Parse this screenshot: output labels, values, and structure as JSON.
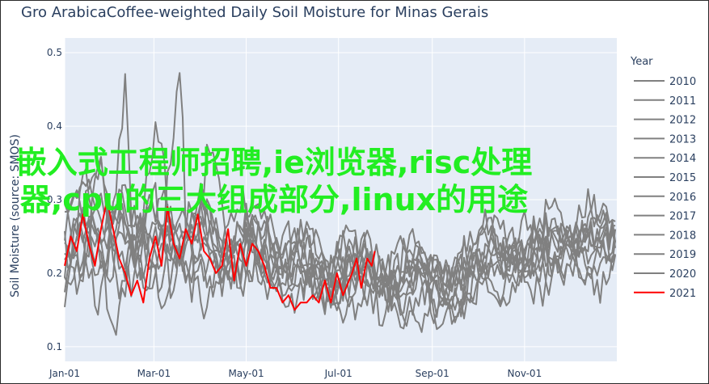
{
  "chart_data": {
    "type": "line",
    "title": "Gro ArabicaCoffee-weighted Daily Soil Moisture for Minas Gerais",
    "ylabel": "Soil Moisture (source: SMOS)",
    "xlabel": "",
    "x_ticks": [
      "Jan-01",
      "Mar-01",
      "May-01",
      "Jul-01",
      "Sep-01",
      "Nov-01"
    ],
    "y_ticks": [
      "0.1",
      "0.2",
      "0.3",
      "0.4",
      "0.5"
    ],
    "ylim": [
      0.08,
      0.52
    ],
    "xlim_days": [
      0,
      365
    ],
    "grid": true,
    "legend_title": "Year",
    "legend_position": "right",
    "colors": {
      "historical": "#808080",
      "current": "#ff0000",
      "plot_bg": "#e5ecf6",
      "grid": "#ffffff"
    },
    "series": [
      {
        "name": "2010",
        "anchors": [
          [
            0,
            0.22
          ],
          [
            15,
            0.3
          ],
          [
            25,
            0.35
          ],
          [
            35,
            0.2
          ],
          [
            50,
            0.27
          ],
          [
            65,
            0.16
          ],
          [
            80,
            0.24
          ],
          [
            100,
            0.18
          ],
          [
            120,
            0.28
          ],
          [
            135,
            0.17
          ],
          [
            150,
            0.22
          ],
          [
            170,
            0.16
          ],
          [
            190,
            0.22
          ],
          [
            210,
            0.14
          ],
          [
            230,
            0.21
          ],
          [
            250,
            0.13
          ],
          [
            270,
            0.23
          ],
          [
            290,
            0.17
          ],
          [
            310,
            0.26
          ],
          [
            330,
            0.22
          ],
          [
            345,
            0.3
          ],
          [
            365,
            0.24
          ]
        ]
      },
      {
        "name": "2011",
        "anchors": [
          [
            0,
            0.18
          ],
          [
            10,
            0.26
          ],
          [
            22,
            0.16
          ],
          [
            35,
            0.3
          ],
          [
            48,
            0.22
          ],
          [
            60,
            0.41
          ],
          [
            75,
            0.21
          ],
          [
            90,
            0.29
          ],
          [
            105,
            0.18
          ],
          [
            125,
            0.26
          ],
          [
            140,
            0.19
          ],
          [
            160,
            0.23
          ],
          [
            180,
            0.17
          ],
          [
            200,
            0.21
          ],
          [
            220,
            0.15
          ],
          [
            240,
            0.2
          ],
          [
            260,
            0.16
          ],
          [
            280,
            0.26
          ],
          [
            300,
            0.2
          ],
          [
            320,
            0.29
          ],
          [
            340,
            0.24
          ],
          [
            365,
            0.27
          ]
        ]
      },
      {
        "name": "2012",
        "anchors": [
          [
            0,
            0.26
          ],
          [
            12,
            0.2
          ],
          [
            24,
            0.38
          ],
          [
            30,
            0.24
          ],
          [
            44,
            0.19
          ],
          [
            58,
            0.33
          ],
          [
            70,
            0.18
          ],
          [
            85,
            0.3
          ],
          [
            100,
            0.21
          ],
          [
            118,
            0.31
          ],
          [
            130,
            0.17
          ],
          [
            148,
            0.25
          ],
          [
            165,
            0.18
          ],
          [
            185,
            0.24
          ],
          [
            205,
            0.16
          ],
          [
            225,
            0.23
          ],
          [
            245,
            0.15
          ],
          [
            265,
            0.24
          ],
          [
            285,
            0.19
          ],
          [
            305,
            0.27
          ],
          [
            325,
            0.21
          ],
          [
            350,
            0.28
          ],
          [
            365,
            0.25
          ]
        ]
      },
      {
        "name": "2013",
        "anchors": [
          [
            0,
            0.2
          ],
          [
            14,
            0.33
          ],
          [
            26,
            0.23
          ],
          [
            38,
            0.29
          ],
          [
            52,
            0.17
          ],
          [
            66,
            0.27
          ],
          [
            82,
            0.2
          ],
          [
            96,
            0.38
          ],
          [
            110,
            0.22
          ],
          [
            128,
            0.27
          ],
          [
            145,
            0.2
          ],
          [
            162,
            0.24
          ],
          [
            178,
            0.16
          ],
          [
            198,
            0.22
          ],
          [
            218,
            0.17
          ],
          [
            238,
            0.24
          ],
          [
            258,
            0.13
          ],
          [
            278,
            0.2
          ],
          [
            298,
            0.23
          ],
          [
            318,
            0.2
          ],
          [
            338,
            0.27
          ],
          [
            365,
            0.22
          ]
        ]
      },
      {
        "name": "2014",
        "anchors": [
          [
            0,
            0.24
          ],
          [
            8,
            0.17
          ],
          [
            20,
            0.28
          ],
          [
            32,
            0.12
          ],
          [
            46,
            0.23
          ],
          [
            62,
            0.19
          ],
          [
            78,
            0.28
          ],
          [
            92,
            0.16
          ],
          [
            108,
            0.25
          ],
          [
            122,
            0.2
          ],
          [
            138,
            0.27
          ],
          [
            155,
            0.17
          ],
          [
            172,
            0.22
          ],
          [
            192,
            0.15
          ],
          [
            212,
            0.2
          ],
          [
            232,
            0.12
          ],
          [
            252,
            0.18
          ],
          [
            272,
            0.22
          ],
          [
            292,
            0.16
          ],
          [
            312,
            0.24
          ],
          [
            332,
            0.19
          ],
          [
            352,
            0.26
          ],
          [
            365,
            0.2
          ]
        ]
      },
      {
        "name": "2015",
        "anchors": [
          [
            0,
            0.19
          ],
          [
            16,
            0.27
          ],
          [
            28,
            0.21
          ],
          [
            40,
            0.45
          ],
          [
            45,
            0.23
          ],
          [
            56,
            0.3
          ],
          [
            72,
            0.22
          ],
          [
            88,
            0.26
          ],
          [
            104,
            0.19
          ],
          [
            120,
            0.29
          ],
          [
            136,
            0.21
          ],
          [
            152,
            0.24
          ],
          [
            170,
            0.19
          ],
          [
            188,
            0.26
          ],
          [
            208,
            0.19
          ],
          [
            228,
            0.25
          ],
          [
            248,
            0.17
          ],
          [
            268,
            0.21
          ],
          [
            288,
            0.27
          ],
          [
            308,
            0.21
          ],
          [
            328,
            0.25
          ],
          [
            348,
            0.21
          ],
          [
            365,
            0.27
          ]
        ]
      },
      {
        "name": "2016",
        "anchors": [
          [
            0,
            0.28
          ],
          [
            11,
            0.21
          ],
          [
            23,
            0.32
          ],
          [
            36,
            0.18
          ],
          [
            49,
            0.26
          ],
          [
            63,
            0.21
          ],
          [
            77,
            0.51
          ],
          [
            80,
            0.24
          ],
          [
            94,
            0.28
          ],
          [
            112,
            0.2
          ],
          [
            126,
            0.23
          ],
          [
            143,
            0.19
          ],
          [
            160,
            0.27
          ],
          [
            176,
            0.2
          ],
          [
            196,
            0.24
          ],
          [
            216,
            0.18
          ],
          [
            236,
            0.22
          ],
          [
            256,
            0.19
          ],
          [
            276,
            0.28
          ],
          [
            296,
            0.22
          ],
          [
            316,
            0.26
          ],
          [
            336,
            0.24
          ],
          [
            356,
            0.3
          ],
          [
            365,
            0.26
          ]
        ]
      },
      {
        "name": "2017",
        "anchors": [
          [
            0,
            0.21
          ],
          [
            13,
            0.28
          ],
          [
            27,
            0.19
          ],
          [
            39,
            0.31
          ],
          [
            53,
            0.23
          ],
          [
            67,
            0.28
          ],
          [
            81,
            0.19
          ],
          [
            97,
            0.27
          ],
          [
            115,
            0.19
          ],
          [
            131,
            0.27
          ],
          [
            147,
            0.2
          ],
          [
            164,
            0.21
          ],
          [
            182,
            0.18
          ],
          [
            202,
            0.21
          ],
          [
            222,
            0.16
          ],
          [
            242,
            0.21
          ],
          [
            262,
            0.18
          ],
          [
            282,
            0.23
          ],
          [
            302,
            0.19
          ],
          [
            322,
            0.25
          ],
          [
            342,
            0.19
          ],
          [
            365,
            0.23
          ]
        ]
      },
      {
        "name": "2018",
        "anchors": [
          [
            0,
            0.25
          ],
          [
            9,
            0.31
          ],
          [
            21,
            0.24
          ],
          [
            33,
            0.29
          ],
          [
            47,
            0.21
          ],
          [
            61,
            0.26
          ],
          [
            76,
            0.22
          ],
          [
            89,
            0.29
          ],
          [
            106,
            0.23
          ],
          [
            124,
            0.24
          ],
          [
            141,
            0.18
          ],
          [
            158,
            0.21
          ],
          [
            175,
            0.16
          ],
          [
            194,
            0.23
          ],
          [
            214,
            0.18
          ],
          [
            234,
            0.21
          ],
          [
            254,
            0.14
          ],
          [
            274,
            0.19
          ],
          [
            294,
            0.22
          ],
          [
            314,
            0.17
          ],
          [
            334,
            0.22
          ],
          [
            354,
            0.18
          ],
          [
            365,
            0.21
          ]
        ]
      },
      {
        "name": "2019",
        "anchors": [
          [
            0,
            0.17
          ],
          [
            15,
            0.23
          ],
          [
            29,
            0.2
          ],
          [
            41,
            0.27
          ],
          [
            55,
            0.18
          ],
          [
            69,
            0.25
          ],
          [
            84,
            0.17
          ],
          [
            99,
            0.24
          ],
          [
            116,
            0.18
          ],
          [
            133,
            0.22
          ],
          [
            149,
            0.16
          ],
          [
            167,
            0.2
          ],
          [
            184,
            0.15
          ],
          [
            204,
            0.2
          ],
          [
            224,
            0.14
          ],
          [
            244,
            0.19
          ],
          [
            264,
            0.16
          ],
          [
            284,
            0.24
          ],
          [
            304,
            0.19
          ],
          [
            324,
            0.26
          ],
          [
            344,
            0.22
          ],
          [
            365,
            0.25
          ]
        ]
      },
      {
        "name": "2020",
        "anchors": [
          [
            0,
            0.27
          ],
          [
            12,
            0.34
          ],
          [
            25,
            0.25
          ],
          [
            37,
            0.3
          ],
          [
            51,
            0.25
          ],
          [
            64,
            0.31
          ],
          [
            79,
            0.23
          ],
          [
            93,
            0.3
          ],
          [
            109,
            0.22
          ],
          [
            127,
            0.3
          ],
          [
            142,
            0.21
          ],
          [
            159,
            0.26
          ],
          [
            177,
            0.2
          ],
          [
            197,
            0.25
          ],
          [
            217,
            0.2
          ],
          [
            237,
            0.23
          ],
          [
            257,
            0.19
          ],
          [
            277,
            0.25
          ],
          [
            297,
            0.21
          ],
          [
            317,
            0.28
          ],
          [
            337,
            0.23
          ],
          [
            357,
            0.27
          ],
          [
            365,
            0.24
          ]
        ]
      },
      {
        "name": "2021",
        "anchors": [
          [
            0,
            0.21
          ],
          [
            4,
            0.25
          ],
          [
            8,
            0.23
          ],
          [
            12,
            0.28
          ],
          [
            16,
            0.24
          ],
          [
            20,
            0.21
          ],
          [
            24,
            0.26
          ],
          [
            28,
            0.3
          ],
          [
            32,
            0.26
          ],
          [
            36,
            0.22
          ],
          [
            40,
            0.2
          ],
          [
            44,
            0.17
          ],
          [
            48,
            0.19
          ],
          [
            52,
            0.16
          ],
          [
            56,
            0.22
          ],
          [
            60,
            0.25
          ],
          [
            64,
            0.21
          ],
          [
            68,
            0.29
          ],
          [
            72,
            0.24
          ],
          [
            76,
            0.22
          ],
          [
            80,
            0.26
          ],
          [
            84,
            0.24
          ],
          [
            88,
            0.28
          ],
          [
            92,
            0.23
          ],
          [
            96,
            0.22
          ],
          [
            100,
            0.2
          ],
          [
            104,
            0.21
          ],
          [
            108,
            0.26
          ],
          [
            112,
            0.19
          ],
          [
            116,
            0.24
          ],
          [
            120,
            0.21
          ],
          [
            124,
            0.24
          ],
          [
            128,
            0.23
          ],
          [
            132,
            0.21
          ],
          [
            136,
            0.18
          ],
          [
            140,
            0.18
          ],
          [
            144,
            0.16
          ],
          [
            148,
            0.17
          ],
          [
            152,
            0.15
          ],
          [
            156,
            0.16
          ],
          [
            160,
            0.16
          ],
          [
            164,
            0.17
          ],
          [
            168,
            0.16
          ],
          [
            172,
            0.19
          ],
          [
            176,
            0.16
          ],
          [
            180,
            0.2
          ],
          [
            184,
            0.17
          ],
          [
            188,
            0.19
          ],
          [
            190,
            0.2
          ],
          [
            193,
            0.22
          ],
          [
            196,
            0.18
          ],
          [
            198,
            0.2
          ],
          [
            200,
            0.22
          ],
          [
            203,
            0.21
          ],
          [
            205,
            0.23
          ]
        ]
      }
    ],
    "current_year": "2021"
  },
  "overlay_text": "嵌入式工程师招聘,ie浏览器,risc处理器,cpu的三大组成部分,linux的用途"
}
